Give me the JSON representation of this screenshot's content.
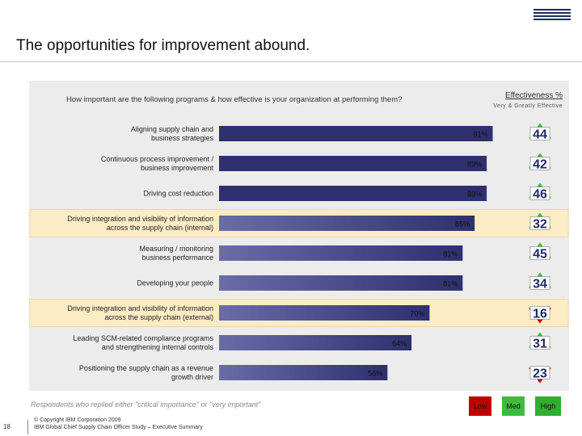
{
  "header": {
    "title": "The opportunities for improvement abound.",
    "logo_text": "IBM"
  },
  "chart_data": {
    "type": "bar",
    "orientation": "horizontal",
    "question": "How important are the following programs & how effective is your organization at performing them?",
    "effectiveness_title": "Effectiveness %",
    "effectiveness_subtitle": "Very & Greatly Effective",
    "categories": [
      "Aligning supply chain and business strategies",
      "Continuous process improvement / business improvement",
      "Driving cost reduction",
      "Driving integration and visibility of information across the supply chain (internal)",
      "Measuring / monitoring business performance",
      "Developing your people",
      "Driving integration and visibility of information across the supply chain (external)",
      "Leading SCM-related compliance programs and strengthening internal controls",
      "Positioning the supply chain as a revenue growth driver"
    ],
    "label_lines": [
      [
        "Aligning supply chain and",
        "business strategies"
      ],
      [
        "Continuous process improvement /",
        "business improvement"
      ],
      [
        "Driving cost reduction"
      ],
      [
        "Driving integration and visibility of information",
        "across the supply chain (internal)"
      ],
      [
        "Measuring / monitoring",
        "business performance"
      ],
      [
        "Developing your people"
      ],
      [
        "Driving integration and visibility of information",
        "across the supply chain (external)"
      ],
      [
        "Leading SCM-related compliance programs",
        "and strengthening internal controls"
      ],
      [
        "Positioning the supply chain as a revenue",
        "growth driver"
      ]
    ],
    "highlighted": [
      false,
      false,
      false,
      true,
      false,
      false,
      true,
      false,
      false
    ],
    "values": [
      91,
      89,
      89,
      85,
      81,
      81,
      70,
      64,
      56
    ],
    "value_labels": [
      "91%",
      "89%",
      "89%",
      "85%",
      "81%",
      "81%",
      "70%",
      "64%",
      "56%"
    ],
    "effectiveness": [
      44,
      42,
      46,
      32,
      45,
      34,
      16,
      31,
      23
    ],
    "effectiveness_level": [
      "med",
      "med",
      "med",
      "med",
      "med",
      "med",
      "low",
      "med",
      "low"
    ],
    "xlim": [
      0,
      100
    ],
    "colors": {
      "bar": "#2e2f6e",
      "bar_light": "#6a6ca8",
      "highlight": "#fcecc6",
      "low": "#c00000",
      "med": "#3dbb3d",
      "high": "#2eaf2e"
    }
  },
  "footer": {
    "note": "Respondents who replied either \"critical importance\" or \"very important\"",
    "legend": {
      "low": "Low",
      "med": "Med",
      "high": "High"
    },
    "page_number": "18",
    "copyright": "© Copyright IBM Corporation 2009",
    "study": "IBM Global Chief Supply Chain Officer Study – Executive Summary"
  }
}
